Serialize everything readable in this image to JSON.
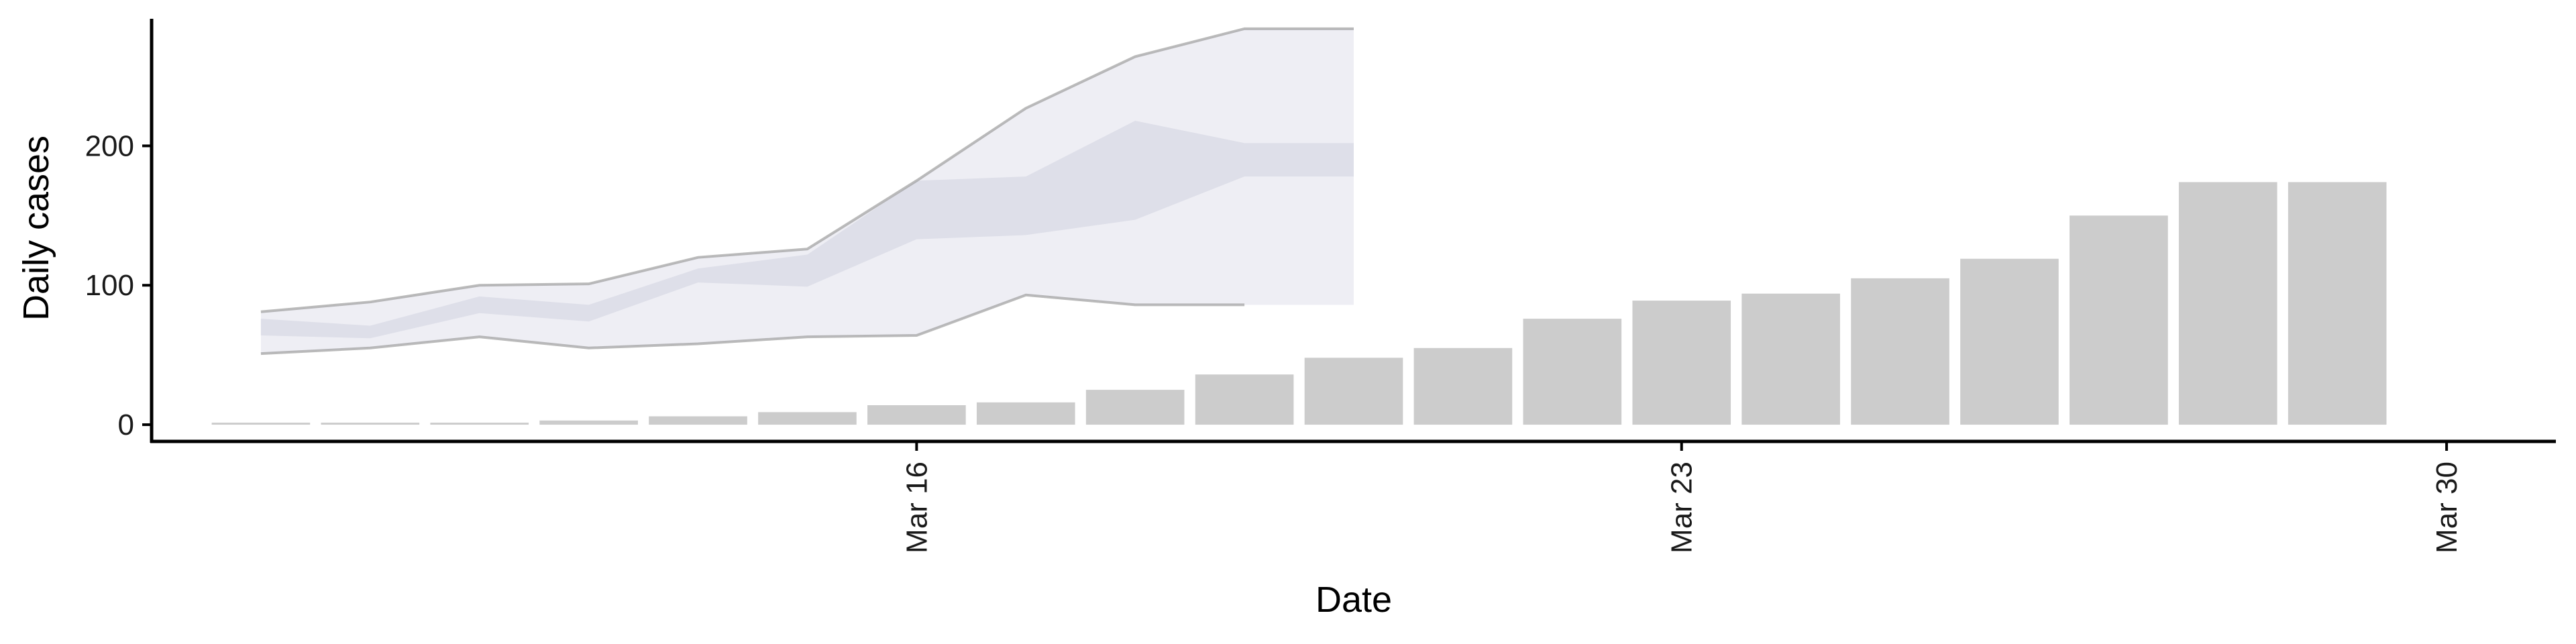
{
  "chart_data": {
    "type": "bar",
    "xlabel": "Date",
    "ylabel": "Daily cases",
    "xlim": [
      "2020-03-09",
      "2020-03-31"
    ],
    "ylim": [
      -12,
      295
    ],
    "x_ticks": [
      {
        "date": "2020-03-16",
        "label": "Mar 16"
      },
      {
        "date": "2020-03-23",
        "label": "Mar 23"
      },
      {
        "date": "2020-03-30",
        "label": "Mar 30"
      }
    ],
    "y_ticks": [
      0,
      100,
      200
    ],
    "bars": {
      "color": "#cccccc",
      "dates": [
        "2020-03-10",
        "2020-03-11",
        "2020-03-12",
        "2020-03-13",
        "2020-03-14",
        "2020-03-15",
        "2020-03-16",
        "2020-03-17",
        "2020-03-18",
        "2020-03-19",
        "2020-03-20",
        "2020-03-21",
        "2020-03-22",
        "2020-03-23",
        "2020-03-24",
        "2020-03-25",
        "2020-03-26",
        "2020-03-27",
        "2020-03-28",
        "2020-03-29"
      ],
      "values": [
        1,
        1,
        1,
        3,
        6,
        9,
        14,
        16,
        25,
        36,
        48,
        55,
        76,
        89,
        94,
        105,
        119,
        150,
        174,
        174
      ]
    },
    "forecast": {
      "dates": [
        "2020-03-10",
        "2020-03-11",
        "2020-03-12",
        "2020-03-13",
        "2020-03-14",
        "2020-03-15",
        "2020-03-16",
        "2020-03-17",
        "2020-03-18",
        "2020-03-19",
        "2020-03-20"
      ],
      "outer_upper": [
        81,
        88,
        100,
        101,
        120,
        126,
        175,
        227,
        264,
        284,
        284
      ],
      "outer_lower": [
        51,
        55,
        63,
        55,
        58,
        63,
        64,
        93,
        86,
        86,
        86
      ],
      "inner_upper": [
        76,
        71,
        92,
        86,
        112,
        122,
        175,
        178,
        218,
        202,
        202
      ],
      "inner_lower": [
        64,
        62,
        80,
        74,
        102,
        99,
        133,
        136,
        147,
        178,
        178
      ],
      "outer_fill_color": "#eeeef4",
      "inner_fill_color": "#dedfe9",
      "upper_line_color": "#9e9e9e",
      "lower_line_color": "#9e9e9e"
    }
  }
}
